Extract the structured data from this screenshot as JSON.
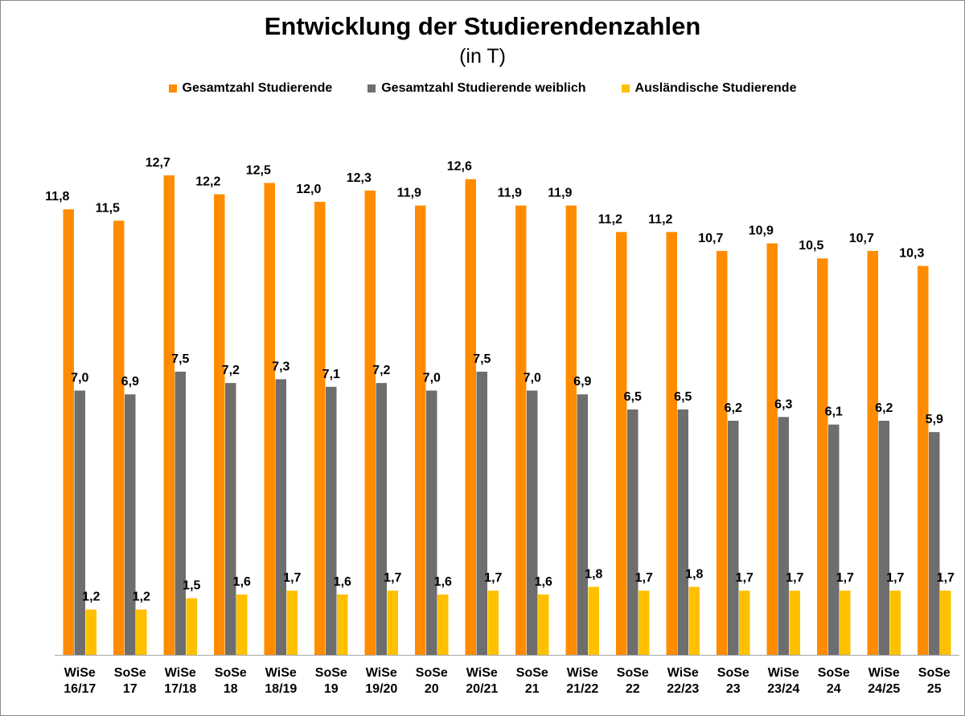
{
  "chart_data": {
    "type": "bar",
    "title": "Entwicklung der Studierendenzahlen",
    "subtitle": "(in T)",
    "xlabel": "",
    "ylabel": "",
    "ylim": [
      0,
      13.5
    ],
    "grid": false,
    "legend_position": "top",
    "categories": [
      [
        "WiSe",
        "16/17"
      ],
      [
        "SoSe",
        "17"
      ],
      [
        "WiSe",
        "17/18"
      ],
      [
        "SoSe",
        "18"
      ],
      [
        "WiSe",
        "18/19"
      ],
      [
        "SoSe",
        "19"
      ],
      [
        "WiSe",
        "19/20"
      ],
      [
        "SoSe",
        "20"
      ],
      [
        "WiSe",
        "20/21"
      ],
      [
        "SoSe",
        "21"
      ],
      [
        "WiSe",
        "21/22"
      ],
      [
        "SoSe",
        "22"
      ],
      [
        "WiSe",
        "22/23"
      ],
      [
        "SoSe",
        "23"
      ],
      [
        "WiSe",
        "23/24"
      ],
      [
        "SoSe",
        "24"
      ],
      [
        "WiSe",
        "24/25"
      ],
      [
        "SoSe",
        "25"
      ]
    ],
    "series": [
      {
        "name": "Gesamtzahl Studierende",
        "color": "#FF8C00",
        "values": [
          11.8,
          11.5,
          12.7,
          12.2,
          12.5,
          12.0,
          12.3,
          11.9,
          12.6,
          11.9,
          11.9,
          11.2,
          11.2,
          10.7,
          10.9,
          10.5,
          10.7,
          10.3
        ],
        "labels": [
          "11,8",
          "11,5",
          "12,7",
          "12,2",
          "12,5",
          "12,0",
          "12,3",
          "11,9",
          "12,6",
          "11,9",
          "11,9",
          "11,2",
          "11,2",
          "10,7",
          "10,9",
          "10,5",
          "10,7",
          "10,3"
        ]
      },
      {
        "name": "Gesamtzahl Studierende weiblich",
        "color": "#6E6E6E",
        "values": [
          7.0,
          6.9,
          7.5,
          7.2,
          7.3,
          7.1,
          7.2,
          7.0,
          7.5,
          7.0,
          6.9,
          6.5,
          6.5,
          6.2,
          6.3,
          6.1,
          6.2,
          5.9
        ],
        "labels": [
          "7,0",
          "6,9",
          "7,5",
          "7,2",
          "7,3",
          "7,1",
          "7,2",
          "7,0",
          "7,5",
          "7,0",
          "6,9",
          "6,5",
          "6,5",
          "6,2",
          "6,3",
          "6,1",
          "6,2",
          "5,9"
        ]
      },
      {
        "name": "Ausländische Studierende",
        "color": "#FFC000",
        "values": [
          1.2,
          1.2,
          1.5,
          1.6,
          1.7,
          1.6,
          1.7,
          1.6,
          1.7,
          1.6,
          1.8,
          1.7,
          1.8,
          1.7,
          1.7,
          1.7,
          1.7,
          1.7
        ],
        "labels": [
          "1,2",
          "1,2",
          "1,5",
          "1,6",
          "1,7",
          "1,6",
          "1,7",
          "1,6",
          "1,7",
          "1,6",
          "1,8",
          "1,7",
          "1,8",
          "1,7",
          "1,7",
          "1,7",
          "1,7",
          "1,7"
        ]
      }
    ]
  }
}
